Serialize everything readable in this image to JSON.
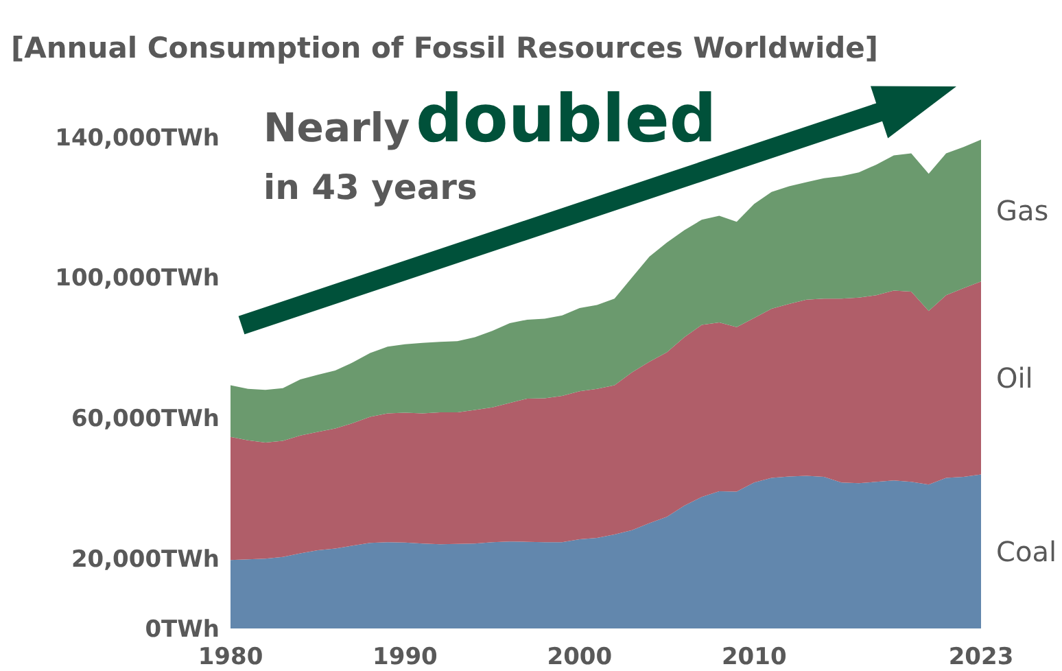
{
  "chart_data": {
    "type": "area",
    "stacked": true,
    "title": "[Annual Consumption of Fossil Resources Worldwide]",
    "annotations": [
      "Nearly",
      "doubled",
      "in 43 years"
    ],
    "x": [
      1980,
      1981,
      1982,
      1983,
      1984,
      1985,
      1986,
      1987,
      1988,
      1989,
      1990,
      1991,
      1992,
      1993,
      1994,
      1995,
      1996,
      1997,
      1998,
      1999,
      2000,
      2001,
      2002,
      2003,
      2004,
      2005,
      2006,
      2007,
      2008,
      2009,
      2010,
      2011,
      2012,
      2013,
      2014,
      2015,
      2016,
      2017,
      2018,
      2019,
      2020,
      2021,
      2022,
      2023
    ],
    "series": [
      {
        "name": "Coal",
        "color": "#6287ad",
        "values": [
          19500,
          19700,
          19900,
          20400,
          21400,
          22300,
          22800,
          23600,
          24400,
          24600,
          24500,
          24200,
          24000,
          24100,
          24200,
          24600,
          24800,
          24700,
          24600,
          24600,
          25400,
          25800,
          26800,
          28000,
          30000,
          31800,
          35000,
          37500,
          39100,
          39000,
          41600,
          42900,
          43300,
          43500,
          43200,
          41600,
          41400,
          41800,
          42200,
          41800,
          41000,
          42900,
          43200,
          43900
        ]
      },
      {
        "name": "Oil",
        "color": "#b05e69",
        "values": [
          35100,
          33900,
          33100,
          33100,
          33600,
          33700,
          34200,
          34900,
          35900,
          36700,
          37000,
          37100,
          37600,
          37500,
          38100,
          38400,
          39500,
          40800,
          41000,
          41700,
          42200,
          42500,
          42500,
          45000,
          46000,
          46900,
          48000,
          49000,
          48100,
          46900,
          46900,
          48200,
          49200,
          50200,
          50800,
          52400,
          52900,
          53200,
          54100,
          54200,
          49500,
          52100,
          53800,
          55000
        ]
      },
      {
        "name": "Gas",
        "color": "#6b9a6e",
        "values": [
          14700,
          14700,
          15000,
          15000,
          16000,
          16300,
          16500,
          17300,
          18200,
          19000,
          19500,
          20100,
          20100,
          20300,
          20700,
          21800,
          22700,
          22500,
          22700,
          22900,
          23700,
          23900,
          24700,
          27000,
          30000,
          31300,
          30500,
          30000,
          30400,
          30000,
          32500,
          33300,
          33500,
          33500,
          34300,
          34900,
          35700,
          37200,
          38500,
          39400,
          39100,
          40400,
          40200,
          40400
        ]
      }
    ],
    "xlim": [
      1980,
      2023
    ],
    "xticks": [
      1980,
      1990,
      2000,
      2010,
      2023
    ],
    "ylim": [
      0,
      140000
    ],
    "yticks": [
      {
        "value": 0,
        "label": "0TWh"
      },
      {
        "value": 20000,
        "label": "20,000TWh"
      },
      {
        "value": 60000,
        "label": "60,000TWh"
      },
      {
        "value": 100000,
        "label": "100,000TWh"
      },
      {
        "value": 140000,
        "label": "140,000TWh"
      }
    ],
    "grid": false
  }
}
